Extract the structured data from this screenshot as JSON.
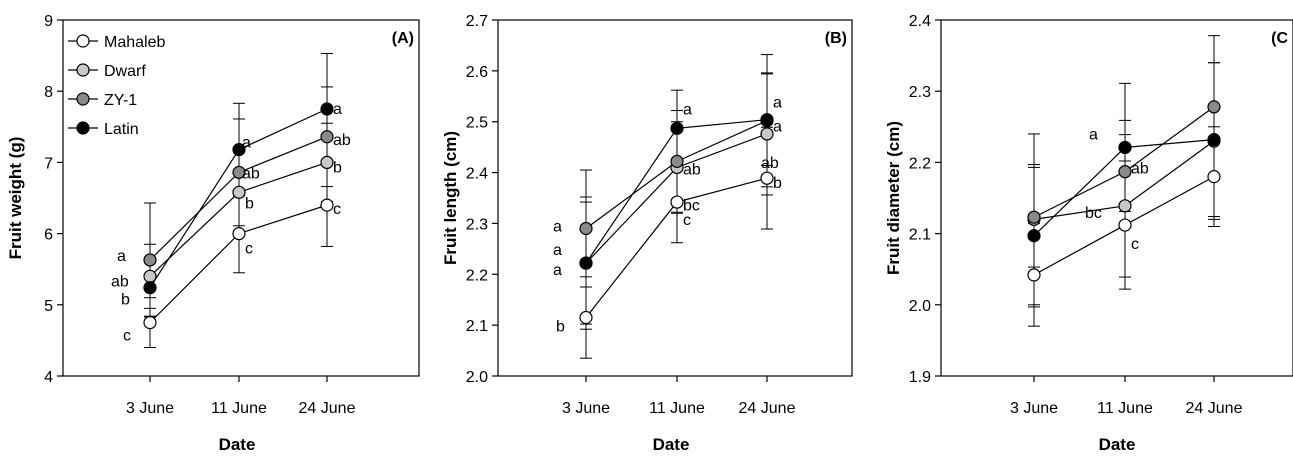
{
  "legend": {
    "entries": [
      {
        "name": "Mahaleb",
        "color": "#ffffff"
      },
      {
        "name": "Dwarf",
        "color": "#c8c8c8"
      },
      {
        "name": "ZY-1",
        "color": "#8a8a8a"
      },
      {
        "name": "Latin",
        "color": "#000000"
      }
    ]
  },
  "chart_data": [
    {
      "type": "line",
      "panel_label": "(A)",
      "xlabel": "Date",
      "ylabel": "Fruit weight (g)",
      "categories": [
        "3 June",
        "11 June",
        "24 June"
      ],
      "ylim": [
        4,
        9
      ],
      "yticks": [
        "4",
        "5",
        "6",
        "7",
        "8",
        "9"
      ],
      "legend": "top-left",
      "grid": false,
      "series": [
        {
          "name": "Mahaleb",
          "color": "#ffffff",
          "values": [
            4.75,
            6.0,
            6.4
          ],
          "err": [
            0.35,
            0.55,
            0.58
          ],
          "letters": [
            "c",
            "c",
            "c"
          ]
        },
        {
          "name": "Dwarf",
          "color": "#c8c8c8",
          "values": [
            5.4,
            6.58,
            7.0
          ],
          "err": [
            0.45,
            0.6,
            0.55
          ],
          "letters": [
            "ab",
            "b",
            "b"
          ]
        },
        {
          "name": "ZY-1",
          "color": "#8a8a8a",
          "values": [
            5.63,
            6.86,
            7.36
          ],
          "err": [
            0.8,
            0.75,
            0.7
          ],
          "letters": [
            "a",
            "ab",
            "ab"
          ]
        },
        {
          "name": "Latin",
          "color": "#000000",
          "values": [
            5.24,
            7.18,
            7.75
          ],
          "err": [
            0.4,
            0.65,
            0.78
          ],
          "letters": [
            "b",
            "a",
            "a"
          ]
        }
      ]
    },
    {
      "type": "line",
      "panel_label": "(B)",
      "xlabel": "Date",
      "ylabel": "Fruit length (cm)",
      "categories": [
        "3 June",
        "11 June",
        "24 June"
      ],
      "ylim": [
        2.0,
        2.7
      ],
      "yticks": [
        "2.0",
        "2.1",
        "2.2",
        "2.3",
        "2.4",
        "2.5",
        "2.6",
        "2.7"
      ],
      "legend": "none",
      "grid": false,
      "series": [
        {
          "name": "Mahaleb",
          "color": "#ffffff",
          "values": [
            2.115,
            2.342,
            2.389
          ],
          "err": [
            0.08,
            0.08,
            0.1
          ],
          "letters": [
            "b",
            "c",
            "b"
          ]
        },
        {
          "name": "Dwarf",
          "color": "#c8c8c8",
          "values": [
            2.222,
            2.41,
            2.476
          ],
          "err": [
            0.12,
            0.09,
            0.12
          ],
          "letters": [
            "a",
            "bc",
            "ab"
          ]
        },
        {
          "name": "ZY-1",
          "color": "#8a8a8a",
          "values": [
            2.29,
            2.422,
            2.502
          ],
          "err": [
            0.115,
            0.1,
            0.13
          ],
          "letters": [
            "a",
            "ab",
            "a"
          ]
        },
        {
          "name": "Latin",
          "color": "#000000",
          "values": [
            2.222,
            2.487,
            2.504
          ],
          "err": [
            0.13,
            0.075,
            0.09
          ],
          "letters": [
            "a",
            "a",
            "a"
          ]
        }
      ]
    },
    {
      "type": "line",
      "panel_label": "(C",
      "xlabel": "Date",
      "ylabel": "Fruit diameter (cm)",
      "categories": [
        "3 June",
        "11 June",
        "24 June"
      ],
      "ylim": [
        1.9,
        2.4
      ],
      "yticks": [
        "1.9",
        "2.0",
        "2.1",
        "2.2",
        "2.3",
        "2.4"
      ],
      "legend": "none",
      "grid": false,
      "series": [
        {
          "name": "Mahaleb",
          "color": "#ffffff",
          "values": [
            2.042,
            2.112,
            2.18
          ],
          "err": [
            0.072,
            0.09,
            0.07
          ],
          "letters": [
            "",
            "c",
            ""
          ]
        },
        {
          "name": "Dwarf",
          "color": "#c8c8c8",
          "values": [
            2.12,
            2.139,
            2.23
          ],
          "err": [
            0.12,
            0.1,
            0.11
          ],
          "letters": [
            "",
            "bc",
            ""
          ]
        },
        {
          "name": "ZY-1",
          "color": "#8a8a8a",
          "values": [
            2.123,
            2.187,
            2.278
          ],
          "err": [
            0.07,
            0.072,
            0.1
          ],
          "letters": [
            "",
            "ab",
            ""
          ]
        },
        {
          "name": "Latin",
          "color": "#000000",
          "values": [
            2.097,
            2.221,
            2.232
          ],
          "err": [
            0.1,
            0.09,
            0.108
          ],
          "letters": [
            "",
            "a",
            ""
          ]
        }
      ]
    }
  ]
}
